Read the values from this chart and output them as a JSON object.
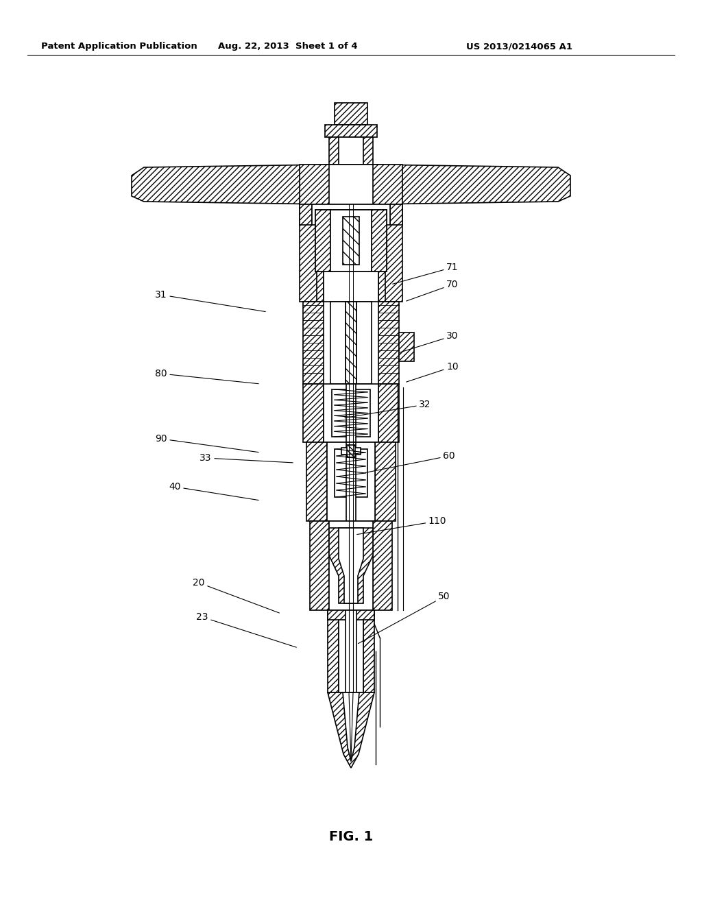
{
  "header_left": "Patent Application Publication",
  "header_mid": "Aug. 22, 2013  Sheet 1 of 4",
  "header_right": "US 2013/0214065 A1",
  "figure_label": "FIG. 1",
  "bg_color": "#ffffff",
  "line_color": "#000000",
  "header_fontsize": 9.5,
  "label_fontsize": 10,
  "fig_label_fontsize": 14,
  "labels": [
    [
      "71",
      660,
      390,
      570,
      415
    ],
    [
      "70",
      660,
      415,
      590,
      440
    ],
    [
      "31",
      235,
      430,
      390,
      455
    ],
    [
      "30",
      660,
      490,
      580,
      515
    ],
    [
      "10",
      660,
      535,
      590,
      558
    ],
    [
      "80",
      235,
      545,
      380,
      560
    ],
    [
      "32",
      620,
      590,
      500,
      610
    ],
    [
      "90",
      235,
      640,
      380,
      660
    ],
    [
      "33",
      300,
      668,
      430,
      675
    ],
    [
      "60",
      655,
      665,
      530,
      690
    ],
    [
      "40",
      255,
      710,
      380,
      730
    ],
    [
      "110",
      638,
      760,
      518,
      780
    ],
    [
      "20",
      290,
      850,
      410,
      895
    ],
    [
      "50",
      648,
      870,
      520,
      940
    ],
    [
      "23",
      295,
      900,
      435,
      945
    ]
  ]
}
